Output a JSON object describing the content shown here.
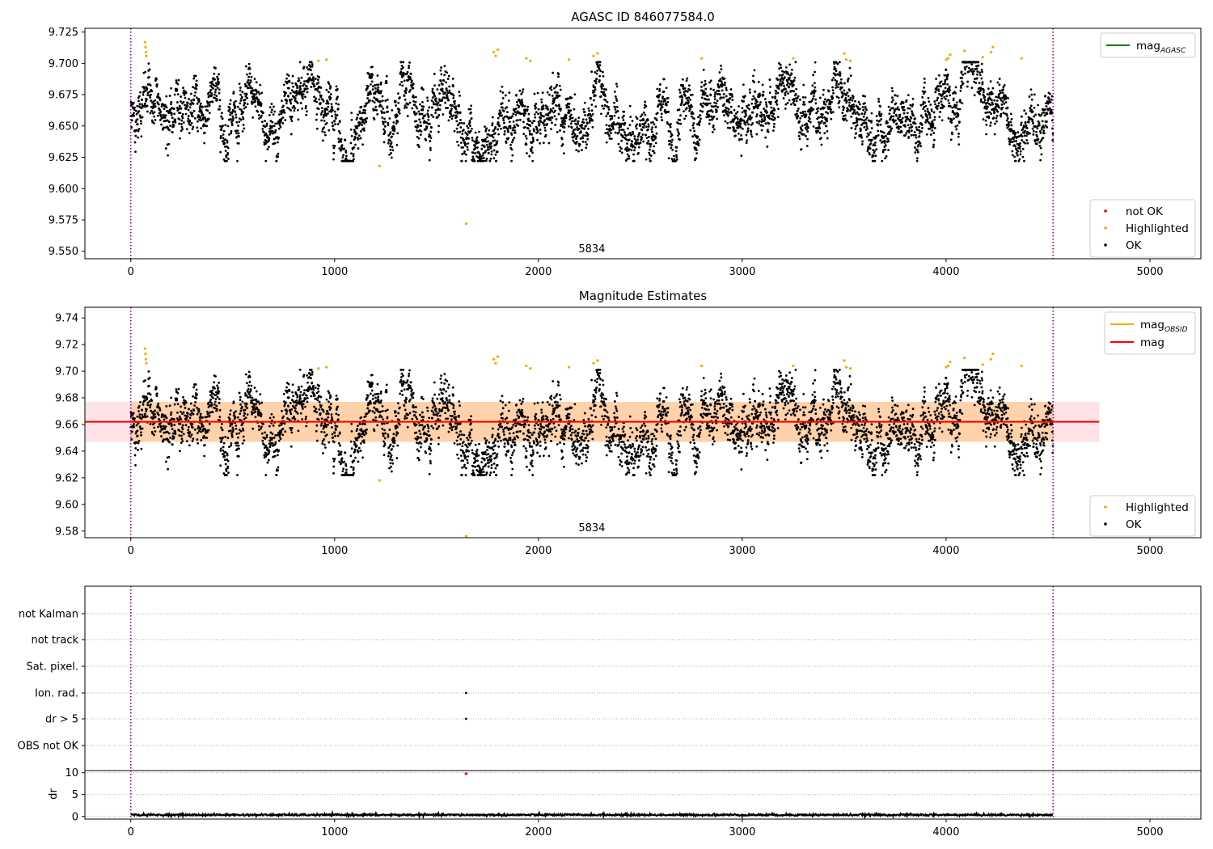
{
  "figure": {
    "colors": {
      "ok": "#000000",
      "highlighted": "#ffa500",
      "not_ok": "#ff0000",
      "agasc_line": "#008000",
      "obsid_line": "#ffa500",
      "mag_line": "#ff0000",
      "obsid_bound": "#800080"
    }
  },
  "chart_data": [
    {
      "type": "scatter",
      "panel": "top",
      "title": "AGASC ID 846077584.0",
      "xlim": [
        -225,
        5250
      ],
      "ylim": [
        9.544,
        9.728
      ],
      "x_ticks": [
        0,
        1000,
        2000,
        3000,
        4000,
        5000
      ],
      "y_ticks": [
        9.55,
        9.575,
        9.6,
        9.625,
        9.65,
        9.675,
        9.7,
        9.725
      ],
      "y_tick_labels": [
        "9.550",
        "9.575",
        "9.600",
        "9.625",
        "9.650",
        "9.675",
        "9.700",
        "9.725"
      ],
      "obsid_bounds": [
        0,
        4525
      ],
      "obsid_label": {
        "text": "5834",
        "x": 2262
      },
      "legend_lines": [
        {
          "label": "mag",
          "subscript": "AGASC",
          "color": "#008000"
        }
      ],
      "legend_points": [
        {
          "label": "not OK",
          "color": "#ff0000"
        },
        {
          "label": "Highlighted",
          "color": "#ffa500"
        },
        {
          "label": "OK",
          "color": "#000000"
        }
      ],
      "series": [
        {
          "name": "OK",
          "n_points": 4525,
          "mean": 9.66,
          "x_range": [
            0,
            4525
          ],
          "y_range": [
            9.622,
            9.701
          ]
        },
        {
          "name": "Highlighted",
          "points": [
            [
              70,
              9.717
            ],
            [
              72,
              9.713
            ],
            [
              74,
              9.709
            ],
            [
              76,
              9.706
            ],
            [
              920,
              9.702
            ],
            [
              960,
              9.703
            ],
            [
              1220,
              9.618
            ],
            [
              1645,
              9.572
            ],
            [
              1780,
              9.709
            ],
            [
              1790,
              9.706
            ],
            [
              1800,
              9.711
            ],
            [
              1940,
              9.704
            ],
            [
              1960,
              9.702
            ],
            [
              2150,
              9.703
            ],
            [
              2270,
              9.706
            ],
            [
              2290,
              9.708
            ],
            [
              2800,
              9.704
            ],
            [
              3250,
              9.704
            ],
            [
              3500,
              9.708
            ],
            [
              3510,
              9.703
            ],
            [
              3530,
              9.702
            ],
            [
              4000,
              9.703
            ],
            [
              4010,
              9.704
            ],
            [
              4020,
              9.707
            ],
            [
              4090,
              9.71
            ],
            [
              4180,
              9.705
            ],
            [
              4220,
              9.709
            ],
            [
              4230,
              9.713
            ],
            [
              4370,
              9.704
            ]
          ]
        },
        {
          "name": "not OK",
          "points": []
        }
      ]
    },
    {
      "type": "scatter",
      "panel": "middle",
      "title": "Magnitude Estimates",
      "xlim": [
        -225,
        5250
      ],
      "ylim": [
        9.575,
        9.748
      ],
      "x_ticks": [
        0,
        1000,
        2000,
        3000,
        4000,
        5000
      ],
      "y_ticks": [
        9.58,
        9.6,
        9.62,
        9.64,
        9.66,
        9.68,
        9.7,
        9.72,
        9.74
      ],
      "y_tick_labels": [
        "9.58",
        "9.60",
        "9.62",
        "9.64",
        "9.66",
        "9.68",
        "9.70",
        "9.72",
        "9.74"
      ],
      "obsid_bounds": [
        0,
        4525
      ],
      "obsid_label": {
        "text": "5834",
        "x": 2262
      },
      "mag_mean": 9.662,
      "mag_band": [
        9.647,
        9.677
      ],
      "mag_band_x": [
        -225,
        4750
      ],
      "legend_lines": [
        {
          "label": "mag",
          "subscript": "OBSID",
          "color": "#ffa500"
        },
        {
          "label": "mag",
          "subscript": "",
          "color": "#ff0000"
        }
      ],
      "legend_points": [
        {
          "label": "Highlighted",
          "color": "#ffa500"
        },
        {
          "label": "OK",
          "color": "#000000"
        }
      ]
    },
    {
      "type": "scatter",
      "panel": "flags",
      "xlim": [
        -225,
        5250
      ],
      "categories": [
        "not Kalman",
        "not track",
        "Sat. pixel.",
        "Ion. rad.",
        "dr > 5",
        "OBS not OK"
      ],
      "flag_points": [
        {
          "category": "Ion. rad.",
          "x": 1645
        },
        {
          "category": "dr > 5",
          "x": 1645
        }
      ]
    },
    {
      "type": "line",
      "panel": "dr",
      "ylabel": "dr",
      "xlim": [
        -225,
        5250
      ],
      "ylim": [
        -0.6,
        10.5
      ],
      "y_ticks": [
        0,
        5,
        10
      ],
      "x_ticks": [
        0,
        1000,
        2000,
        3000,
        4000,
        5000
      ],
      "outlier": {
        "x": 1645,
        "y": 9.8
      },
      "typical_dr": 0.35
    }
  ]
}
